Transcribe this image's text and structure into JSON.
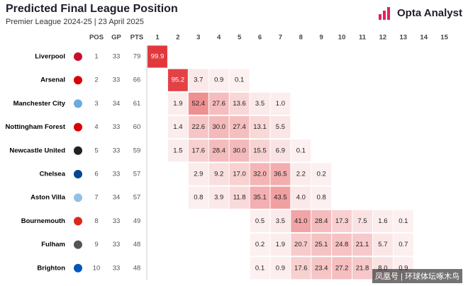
{
  "header": {
    "title": "Predicted Final League Position",
    "subtitle": "Premier League 2024-25 | 23 April 2025",
    "brand": "Opta Analyst"
  },
  "table": {
    "columns": [
      "POS",
      "GP",
      "PTS"
    ],
    "positions": [
      "1",
      "2",
      "3",
      "4",
      "5",
      "6",
      "7",
      "8",
      "9",
      "10",
      "11",
      "12",
      "13",
      "14",
      "15"
    ],
    "rows": [
      {
        "team": "Liverpool",
        "pos": "1",
        "gp": "33",
        "pts": "79",
        "crest": "#c8102e",
        "probs": [
          "99.9",
          null,
          null,
          null,
          null,
          null,
          null,
          null,
          null,
          null,
          null,
          null,
          null,
          null,
          null
        ]
      },
      {
        "team": "Arsenal",
        "pos": "2",
        "gp": "33",
        "pts": "66",
        "crest": "#db0007",
        "probs": [
          null,
          "95.2",
          "3.7",
          "0.9",
          "0.1",
          null,
          null,
          null,
          null,
          null,
          null,
          null,
          null,
          null,
          null
        ]
      },
      {
        "team": "Manchester City",
        "pos": "3",
        "gp": "34",
        "pts": "61",
        "crest": "#6cabdd",
        "probs": [
          null,
          "1.9",
          "52.4",
          "27.6",
          "13.6",
          "3.5",
          "1.0",
          null,
          null,
          null,
          null,
          null,
          null,
          null,
          null
        ]
      },
      {
        "team": "Nottingham Forest",
        "pos": "4",
        "gp": "33",
        "pts": "60",
        "crest": "#dd0000",
        "probs": [
          null,
          "1.4",
          "22.6",
          "30.0",
          "27.4",
          "13.1",
          "5.5",
          null,
          null,
          null,
          null,
          null,
          null,
          null,
          null
        ]
      },
      {
        "team": "Newcastle United",
        "pos": "5",
        "gp": "33",
        "pts": "59",
        "crest": "#241f20",
        "probs": [
          null,
          "1.5",
          "17.6",
          "28.4",
          "30.0",
          "15.5",
          "6.9",
          "0.1",
          null,
          null,
          null,
          null,
          null,
          null,
          null
        ]
      },
      {
        "team": "Chelsea",
        "pos": "6",
        "gp": "33",
        "pts": "57",
        "crest": "#034694",
        "probs": [
          null,
          null,
          "2.9",
          "9.2",
          "17.0",
          "32.0",
          "36.5",
          "2.2",
          "0.2",
          null,
          null,
          null,
          null,
          null,
          null
        ]
      },
      {
        "team": "Aston Villa",
        "pos": "7",
        "gp": "34",
        "pts": "57",
        "crest": "#95bfe5",
        "probs": [
          null,
          null,
          "0.8",
          "3.9",
          "11.8",
          "35.1",
          "43.5",
          "4.0",
          "0.8",
          null,
          null,
          null,
          null,
          null,
          null
        ]
      },
      {
        "team": "Bournemouth",
        "pos": "8",
        "gp": "33",
        "pts": "49",
        "crest": "#da291c",
        "probs": [
          null,
          null,
          null,
          null,
          null,
          "0.5",
          "3.5",
          "41.0",
          "28.4",
          "17.3",
          "7.5",
          "1.6",
          "0.1",
          null,
          null
        ]
      },
      {
        "team": "Fulham",
        "pos": "9",
        "gp": "33",
        "pts": "48",
        "crest": "#555555",
        "probs": [
          null,
          null,
          null,
          null,
          null,
          "0.2",
          "1.9",
          "20.7",
          "25.1",
          "24.8",
          "21.1",
          "5.7",
          "0.7",
          null,
          null
        ]
      },
      {
        "team": "Brighton",
        "pos": "10",
        "gp": "33",
        "pts": "48",
        "crest": "#0057b8",
        "probs": [
          null,
          null,
          null,
          null,
          null,
          "0.1",
          "0.9",
          "17.6",
          "23.4",
          "27.2",
          "21.8",
          "8.0",
          "0.9",
          null,
          null
        ]
      }
    ]
  },
  "footer": {
    "watermark": "凤凰号 | 环球体坛啄木鸟"
  }
}
